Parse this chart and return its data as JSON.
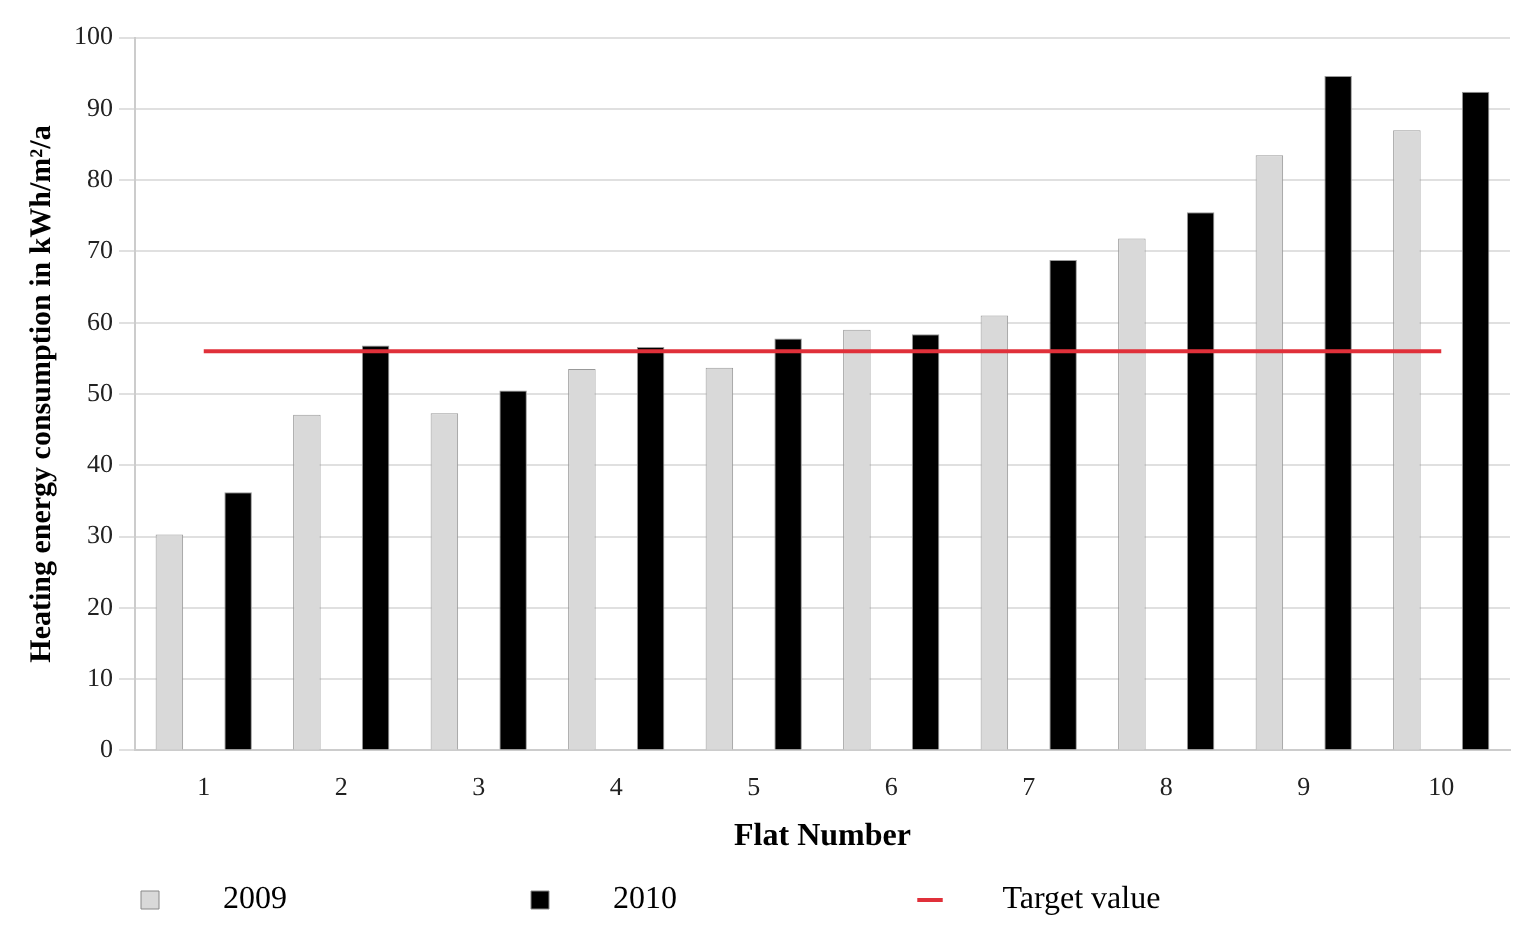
{
  "chart_data": {
    "type": "bar",
    "xlabel": "Flat Number",
    "ylabel": "Heating energy consumption in kWh/m²/a",
    "categories": [
      "1",
      "2",
      "3",
      "4",
      "5",
      "6",
      "7",
      "8",
      "9",
      "10"
    ],
    "series": [
      {
        "name": "2009",
        "color": "#d9d9d9",
        "values": [
          30.3,
          47.1,
          47.3,
          53.5,
          53.7,
          59,
          61,
          71.8,
          83.5,
          87
        ]
      },
      {
        "name": "2010",
        "color": "#000000",
        "values": [
          36.2,
          56.8,
          50.5,
          56.6,
          57.8,
          58.4,
          68.8,
          75.5,
          94.6,
          92.4
        ]
      },
      {
        "name": "Target value",
        "type": "line",
        "color": "#e0303a",
        "values": [
          56,
          56,
          56,
          56,
          56,
          56,
          56,
          56,
          56,
          56
        ]
      }
    ],
    "ylim": [
      0,
      100
    ],
    "yticks": [
      0,
      10,
      20,
      30,
      40,
      50,
      60,
      70,
      80,
      90,
      100
    ],
    "grid": "y",
    "legend": "bottom",
    "marker": "none"
  }
}
